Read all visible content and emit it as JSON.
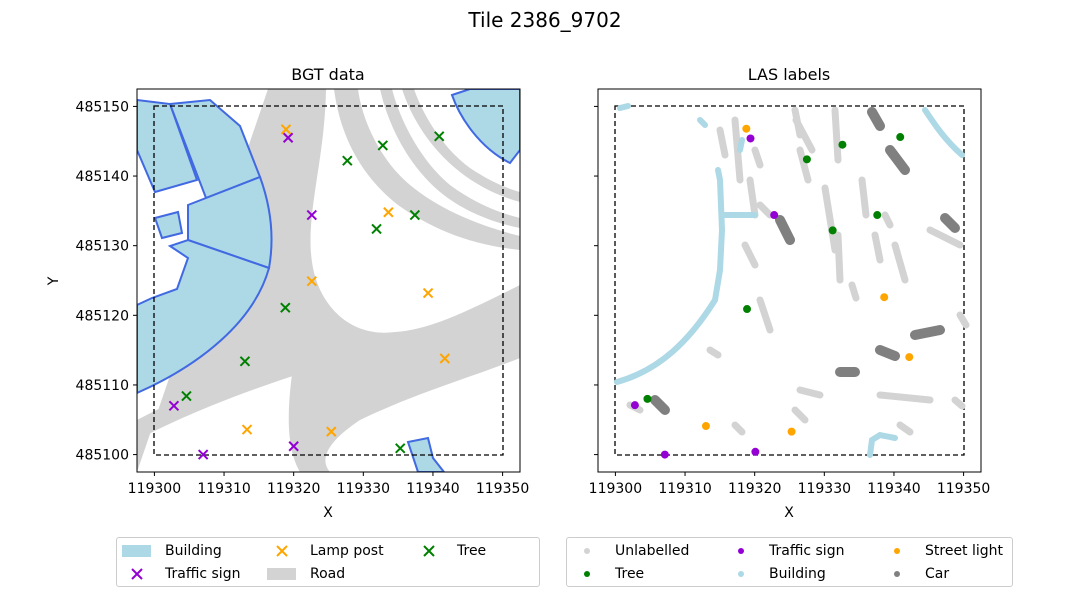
{
  "figure": {
    "title": "Tile 2386_9702"
  },
  "chart_data": [
    {
      "type": "map",
      "title": "BGT data",
      "xlabel": "X",
      "ylabel": "Y",
      "xlim": [
        119297.5,
        119352.5
      ],
      "ylim": [
        485097.5,
        485152.5
      ],
      "xticks": [
        119300,
        119310,
        119320,
        119330,
        119340,
        119350
      ],
      "yticks": [
        485100,
        485110,
        485120,
        485130,
        485140,
        485150
      ],
      "tile_bbox": [
        119300,
        485100,
        119350,
        485150
      ],
      "colors": {
        "building_fill": "#add8e6",
        "building_edge": "#4169e1",
        "road": "#d3d3d3"
      },
      "series": [
        {
          "name": "Traffic sign",
          "marker": "x",
          "color": "#9400d3",
          "points": [
            [
              119319.2,
              485145.5
            ],
            [
              119322.6,
              485134.4
            ],
            [
              119302.8,
              485107.0
            ],
            [
              119307.0,
              485100.0
            ],
            [
              119320.0,
              485101.2
            ]
          ]
        },
        {
          "name": "Tree",
          "marker": "x",
          "color": "#008000",
          "points": [
            [
              119327.7,
              485142.2
            ],
            [
              119332.8,
              485144.4
            ],
            [
              119340.9,
              485145.7
            ],
            [
              119331.9,
              485132.4
            ],
            [
              119337.4,
              485134.4
            ],
            [
              119318.8,
              485121.1
            ],
            [
              119313.0,
              485113.4
            ],
            [
              119304.6,
              485108.4
            ],
            [
              119335.3,
              485100.9
            ]
          ]
        },
        {
          "name": "Lamp post",
          "marker": "x",
          "color": "#ffa500",
          "points": [
            [
              119318.9,
              485146.7
            ],
            [
              119333.6,
              485134.8
            ],
            [
              119322.6,
              485124.9
            ],
            [
              119339.3,
              485123.2
            ],
            [
              119341.7,
              485113.8
            ],
            [
              119313.3,
              485103.6
            ],
            [
              119325.4,
              485103.3
            ]
          ]
        }
      ],
      "legend": {
        "columns": 3,
        "entries": [
          {
            "label": "Building",
            "kind": "patch",
            "color": "#add8e6"
          },
          {
            "label": "Traffic sign",
            "kind": "x",
            "color": "#9400d3"
          },
          {
            "label": "Lamp post",
            "kind": "x",
            "color": "#ffa500"
          },
          {
            "label": "Road",
            "kind": "patch",
            "color": "#d3d3d3"
          },
          {
            "label": "Tree",
            "kind": "x",
            "color": "#008000"
          }
        ]
      }
    },
    {
      "type": "scatter",
      "title": "LAS labels",
      "xlabel": "X",
      "xlim": [
        119297.5,
        119352.5
      ],
      "ylim": [
        485097.5,
        485152.5
      ],
      "xticks": [
        119300,
        119310,
        119320,
        119330,
        119340,
        119350
      ],
      "tile_bbox": [
        119300,
        485100,
        119350,
        485150
      ],
      "series": [
        {
          "name": "Unlabelled",
          "color": "#d3d3d3"
        },
        {
          "name": "Building",
          "color": "#add8e6"
        },
        {
          "name": "Tree",
          "color": "#008000",
          "points": [
            [
              119327.5,
              485142.4
            ],
            [
              119332.6,
              485144.5
            ],
            [
              119340.9,
              485145.6
            ],
            [
              119331.2,
              485132.2
            ],
            [
              119337.6,
              485134.4
            ],
            [
              119318.9,
              485120.9
            ],
            [
              119304.6,
              485108.0
            ]
          ]
        },
        {
          "name": "Street light",
          "color": "#ffa500",
          "points": [
            [
              119318.8,
              485146.8
            ],
            [
              119338.6,
              485122.6
            ],
            [
              119342.2,
              485114.0
            ],
            [
              119313.0,
              485104.1
            ],
            [
              119325.3,
              485103.3
            ]
          ]
        },
        {
          "name": "Traffic sign",
          "color": "#9400d3",
          "points": [
            [
              119319.4,
              485145.4
            ],
            [
              119322.8,
              485134.4
            ],
            [
              119302.8,
              485107.1
            ],
            [
              119307.1,
              485100.0
            ],
            [
              119320.1,
              485100.4
            ]
          ]
        },
        {
          "name": "Car",
          "color": "#808080"
        }
      ],
      "legend": {
        "columns": 3,
        "entries": [
          {
            "label": "Unlabelled",
            "kind": "dot",
            "color": "#d3d3d3"
          },
          {
            "label": "Tree",
            "kind": "dot",
            "color": "#008000"
          },
          {
            "label": "Traffic sign",
            "kind": "dot",
            "color": "#9400d3"
          },
          {
            "label": "Building",
            "kind": "dot",
            "color": "#add8e6"
          },
          {
            "label": "Street light",
            "kind": "dot",
            "color": "#ffa500"
          },
          {
            "label": "Car",
            "kind": "dot",
            "color": "#808080"
          }
        ]
      }
    }
  ]
}
